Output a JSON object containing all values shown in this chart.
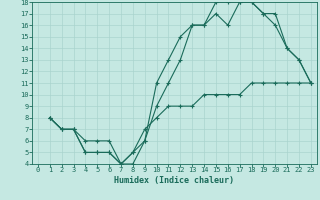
{
  "title": "",
  "xlabel": "Humidex (Indice chaleur)",
  "xlim": [
    -0.5,
    23.5
  ],
  "ylim": [
    4,
    18
  ],
  "xticks": [
    0,
    1,
    2,
    3,
    4,
    5,
    6,
    7,
    8,
    9,
    10,
    11,
    12,
    13,
    14,
    15,
    16,
    17,
    18,
    19,
    20,
    21,
    22,
    23
  ],
  "yticks": [
    4,
    5,
    6,
    7,
    8,
    9,
    10,
    11,
    12,
    13,
    14,
    15,
    16,
    17,
    18
  ],
  "bg_color": "#c5e8e2",
  "line_color": "#1a6b5a",
  "grid_color": "#aad4ce",
  "curve1_x": [
    1,
    2,
    3,
    4,
    5,
    6,
    7,
    8,
    9,
    10,
    11,
    12,
    13,
    14,
    15,
    16,
    17,
    18,
    19,
    20,
    21,
    22,
    23
  ],
  "curve1_y": [
    8,
    7,
    7,
    5,
    5,
    5,
    4,
    4,
    6,
    9,
    11,
    13,
    16,
    16,
    17,
    16,
    18,
    18,
    17,
    16,
    14,
    13,
    11
  ],
  "curve2_x": [
    1,
    2,
    3,
    4,
    5,
    6,
    7,
    8,
    9,
    10,
    11,
    12,
    13,
    14,
    15,
    16,
    17,
    18,
    19,
    20,
    21,
    22,
    23
  ],
  "curve2_y": [
    8,
    7,
    7,
    5,
    5,
    5,
    4,
    5,
    6,
    11,
    13,
    15,
    16,
    16,
    18,
    18,
    18,
    18,
    17,
    17,
    14,
    13,
    11
  ],
  "curve3_x": [
    1,
    2,
    3,
    4,
    5,
    6,
    7,
    8,
    9,
    10,
    11,
    12,
    13,
    14,
    15,
    16,
    17,
    18,
    19,
    20,
    21,
    22,
    23
  ],
  "curve3_y": [
    8,
    7,
    7,
    6,
    6,
    6,
    4,
    5,
    7,
    8,
    9,
    9,
    9,
    10,
    10,
    10,
    10,
    11,
    11,
    11,
    11,
    11,
    11
  ],
  "label_fontsize": 5,
  "xlabel_fontsize": 6,
  "marker": "+",
  "markersize": 3,
  "linewidth": 0.8
}
